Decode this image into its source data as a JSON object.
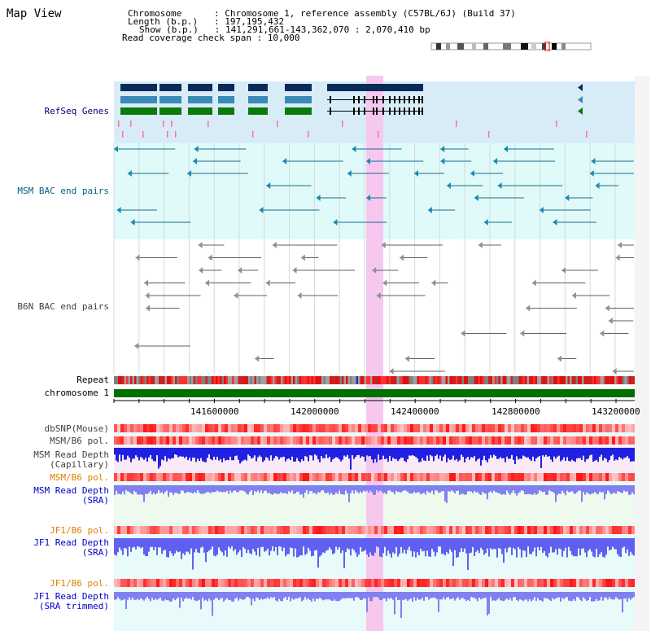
{
  "title": "Map View",
  "info": {
    "chromosome_label": "Chromosome",
    "chromosome_value": ": Chromosome 1, reference assembly (C57BL/6J) (Build 37)",
    "length_label": "Length (b.p.)",
    "length_value": ": 197,195,432",
    "show_label": "Show (b.p.)",
    "show_value": ": 141,291,661-143,362,070 : 2,070,410 bp",
    "coverage": "Read coverage check span : 10,000"
  },
  "tracks": {
    "refseq": "RefSeq Genes",
    "msm_bac": "MSM BAC end pairs",
    "b6n_bac": "B6N BAC end pairs",
    "repeat": "Repeat",
    "chromosome": "chromosome 1",
    "dbsnp": "dbSNP(Mouse)",
    "msm_b6_pol_1": "MSM/B6 pol.",
    "msm_depth_cap_1": "MSM Read Depth",
    "msm_depth_cap_2": "(Capillary)",
    "msm_b6_pol_2": "MSM/B6 pol.",
    "msm_depth_sra_1": "MSM Read Depth",
    "msm_depth_sra_2": "(SRA)",
    "jf1_b6_pol_1": "JF1/B6 pol.",
    "jf1_depth_sra_1": "JF1 Read Depth",
    "jf1_depth_sra_2": "(SRA)",
    "jf1_b6_pol_2": "JF1/B6 pol.",
    "jf1_depth_trim_1": "JF1 Read Depth",
    "jf1_depth_trim_2": "(SRA trimmed)"
  },
  "axis_ticks": [
    "141600000",
    "142000000",
    "142400000",
    "142800000",
    "143200000"
  ],
  "colors": {
    "highlight": "#f6c8f0",
    "refseq_bg": "#d8ecf8",
    "msm_bg": "#e0fafa",
    "gene_navy": "#0a2a5a",
    "gene_steel": "#3a8ab8",
    "gene_green": "#0a7a0a",
    "chromosome_bar": "#007000",
    "depth_blue": "#2020e0",
    "depth_light": "#8080f0"
  }
}
